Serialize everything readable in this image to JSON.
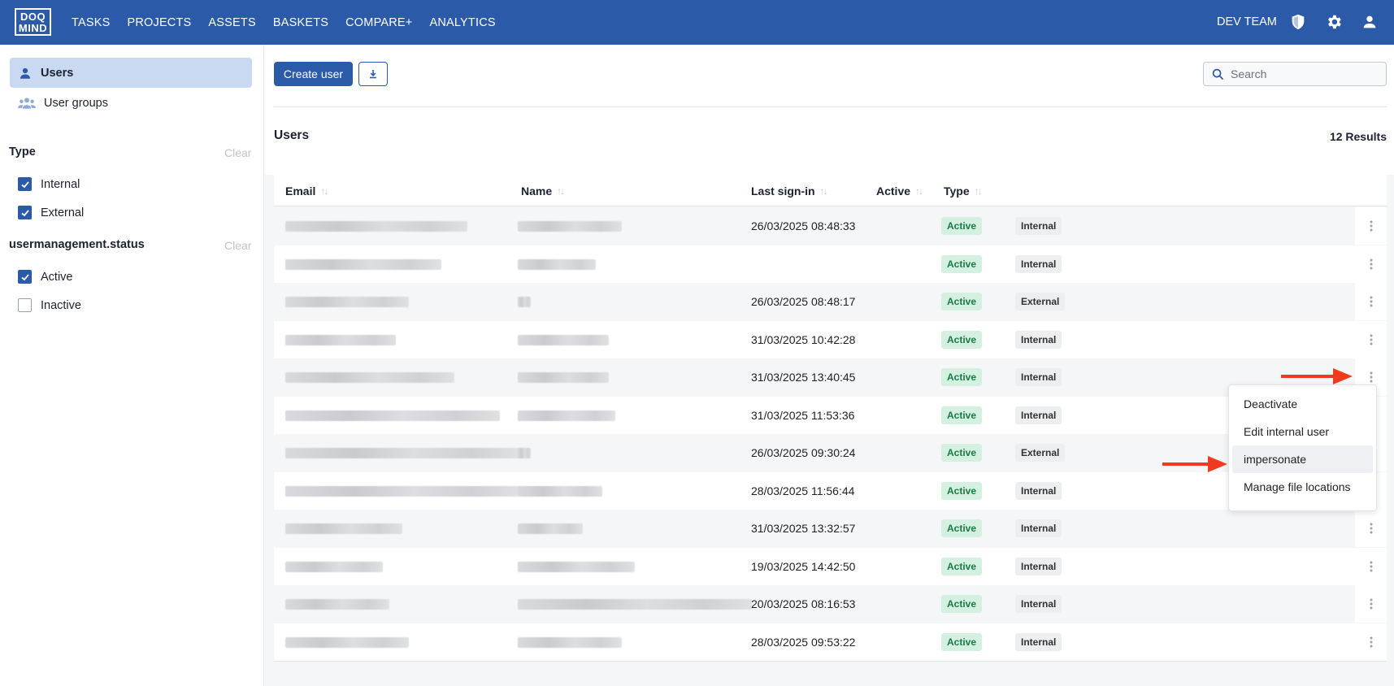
{
  "logo": {
    "line1": "DOQ",
    "line2": "MIND"
  },
  "nav": [
    "TASKS",
    "PROJECTS",
    "ASSETS",
    "BASKETS",
    "COMPARE+",
    "ANALYTICS"
  ],
  "header": {
    "team": "DEV TEAM",
    "icons": [
      "shield-icon",
      "gear-icon",
      "user-icon"
    ]
  },
  "sidebar": {
    "items": [
      {
        "label": "Users",
        "icon": "user-icon",
        "active": true
      },
      {
        "label": "User groups",
        "icon": "users-icon",
        "active": false
      }
    ],
    "filters": [
      {
        "title": "Type",
        "clear": "Clear",
        "options": [
          {
            "label": "Internal",
            "checked": true
          },
          {
            "label": "External",
            "checked": true
          }
        ]
      },
      {
        "title": "usermanagement.status",
        "clear": "Clear",
        "options": [
          {
            "label": "Active",
            "checked": true
          },
          {
            "label": "Inactive",
            "checked": false
          }
        ]
      }
    ]
  },
  "toolbar": {
    "create_label": "Create user",
    "download_icon": "download-icon",
    "search_placeholder": "Search"
  },
  "section": {
    "title": "Users",
    "results": "12 Results"
  },
  "table": {
    "columns": [
      "Email",
      "Name",
      "Last sign-in",
      "Active",
      "Type"
    ],
    "rows": [
      {
        "last_sign_in": "26/03/2025 08:48:33",
        "active": "Active",
        "type": "Internal"
      },
      {
        "last_sign_in": "",
        "active": "Active",
        "type": "Internal"
      },
      {
        "last_sign_in": "26/03/2025 08:48:17",
        "active": "Active",
        "type": "External"
      },
      {
        "last_sign_in": "31/03/2025 10:42:28",
        "active": "Active",
        "type": "Internal"
      },
      {
        "last_sign_in": "31/03/2025 13:40:45",
        "active": "Active",
        "type": "Internal"
      },
      {
        "last_sign_in": "31/03/2025 11:53:36",
        "active": "Active",
        "type": "Internal"
      },
      {
        "last_sign_in": "26/03/2025 09:30:24",
        "active": "Active",
        "type": "External"
      },
      {
        "last_sign_in": "28/03/2025 11:56:44",
        "active": "Active",
        "type": "Internal"
      },
      {
        "last_sign_in": "31/03/2025 13:32:57",
        "active": "Active",
        "type": "Internal"
      },
      {
        "last_sign_in": "19/03/2025 14:42:50",
        "active": "Active",
        "type": "Internal"
      },
      {
        "last_sign_in": "20/03/2025 08:16:53",
        "active": "Active",
        "type": "Internal"
      },
      {
        "last_sign_in": "28/03/2025 09:53:22",
        "active": "Active",
        "type": "Internal"
      }
    ]
  },
  "context_menu": {
    "items": [
      "Deactivate",
      "Edit internal user",
      "impersonate",
      "Manage file locations"
    ],
    "highlighted": "impersonate"
  },
  "colors": {
    "primary": "#2b5aa8",
    "active_badge_bg": "#d3f0e0",
    "active_badge_text": "#1b7a46",
    "arrow": "#f03a1e"
  }
}
